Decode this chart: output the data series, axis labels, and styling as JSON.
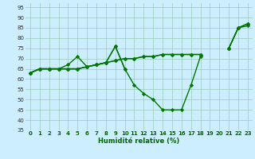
{
  "xlabel": "Humidité relative (%)",
  "background_color": "#cceeff",
  "grid_color": "#99ccbb",
  "line_color": "#007700",
  "x": [
    0,
    1,
    2,
    3,
    4,
    5,
    6,
    7,
    8,
    9,
    10,
    11,
    12,
    13,
    14,
    15,
    16,
    17,
    18,
    19,
    20,
    21,
    22,
    23
  ],
  "series1": [
    63,
    65,
    65,
    65,
    67,
    71,
    66,
    67,
    68,
    76,
    65,
    57,
    53,
    50,
    45,
    45,
    45,
    57,
    71,
    null,
    null,
    75,
    85,
    87
  ],
  "series2": [
    63,
    65,
    65,
    65,
    65,
    65,
    66,
    67,
    68,
    69,
    70,
    70,
    71,
    71,
    72,
    72,
    72,
    72,
    72,
    null,
    null,
    75,
    85,
    87
  ],
  "series3": [
    63,
    65,
    65,
    65,
    65,
    65,
    66,
    67,
    68,
    69,
    70,
    70,
    71,
    71,
    72,
    72,
    72,
    72,
    72,
    null,
    null,
    75,
    85,
    86
  ],
  "series4": [
    63,
    65,
    65,
    65,
    65,
    65,
    66,
    67,
    68,
    76,
    65,
    null,
    null,
    null,
    null,
    null,
    null,
    null,
    null,
    null,
    null,
    null,
    null,
    null
  ],
  "xlim": [
    -0.5,
    23.5
  ],
  "ylim": [
    35,
    97
  ],
  "yticks": [
    35,
    40,
    45,
    50,
    55,
    60,
    65,
    70,
    75,
    80,
    85,
    90,
    95
  ],
  "xticks": [
    0,
    1,
    2,
    3,
    4,
    5,
    6,
    7,
    8,
    9,
    10,
    11,
    12,
    13,
    14,
    15,
    16,
    17,
    18,
    19,
    20,
    21,
    22,
    23
  ],
  "marker": "D",
  "markersize": 2.2,
  "linewidth": 1.0,
  "tick_fontsize": 5.0,
  "xlabel_fontsize": 6.0
}
